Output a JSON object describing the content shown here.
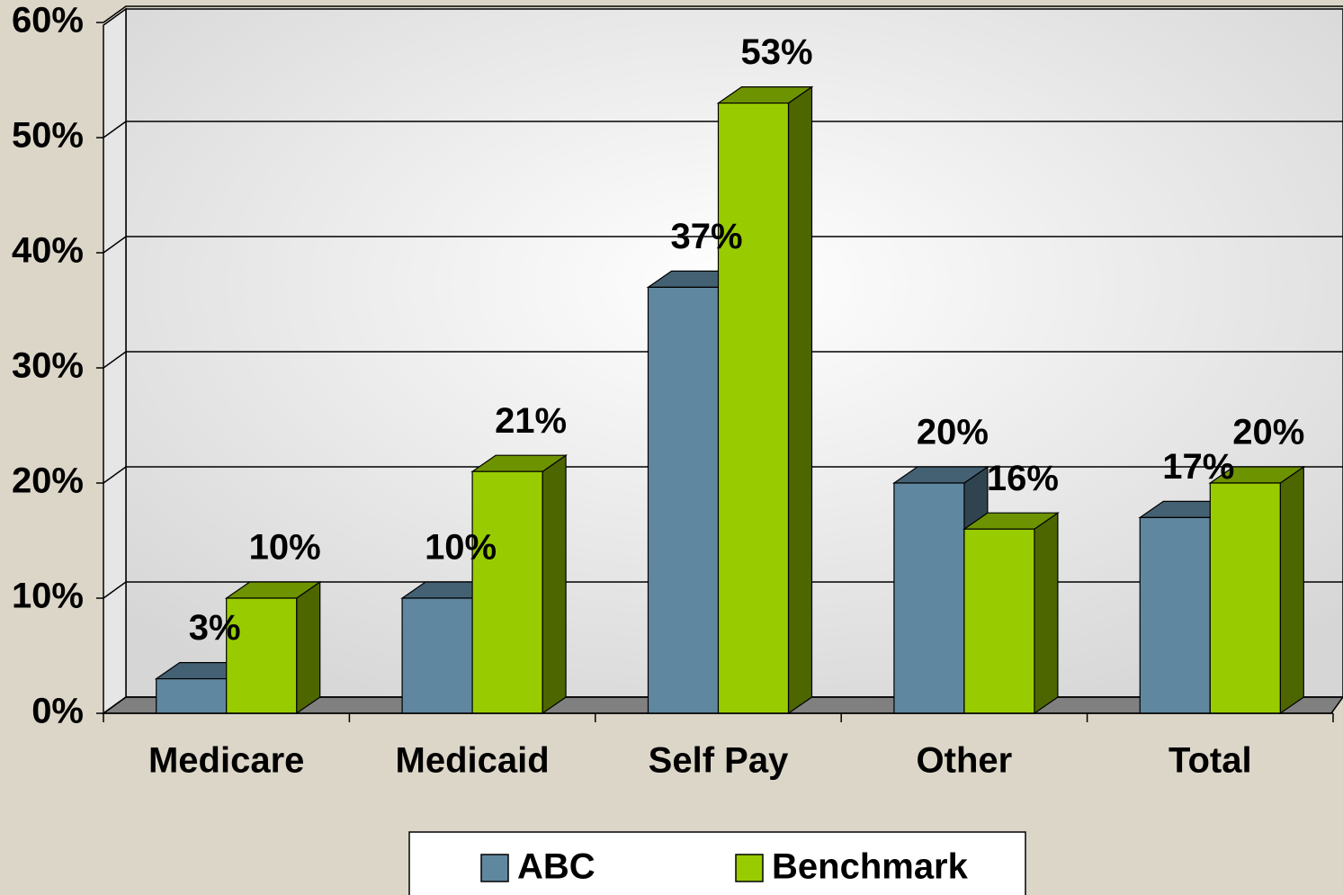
{
  "chart_data": {
    "type": "bar3d",
    "categories": [
      "Medicare",
      "Medicaid",
      "Self Pay",
      "Other",
      "Total"
    ],
    "series": [
      {
        "name": "ABC",
        "color": "#5f87a0",
        "values": [
          3,
          10,
          37,
          20,
          17
        ],
        "value_labels": [
          "3%",
          "10%",
          "37%",
          "20%",
          "17%"
        ]
      },
      {
        "name": "Benchmark",
        "color": "#99cc00",
        "values": [
          10,
          21,
          53,
          16,
          20
        ],
        "value_labels": [
          "10%",
          "21%",
          "53%",
          "16%",
          "20%"
        ]
      }
    ],
    "ylim": [
      0,
      60
    ],
    "yticks": [
      {
        "value": 0,
        "label": "0%"
      },
      {
        "value": 10,
        "label": "10%"
      },
      {
        "value": 20,
        "label": "20%"
      },
      {
        "value": 30,
        "label": "30%"
      },
      {
        "value": 40,
        "label": "40%"
      },
      {
        "value": 50,
        "label": "50%"
      },
      {
        "value": 60,
        "label": "60%"
      }
    ],
    "grid": true,
    "legend": "bottom"
  }
}
